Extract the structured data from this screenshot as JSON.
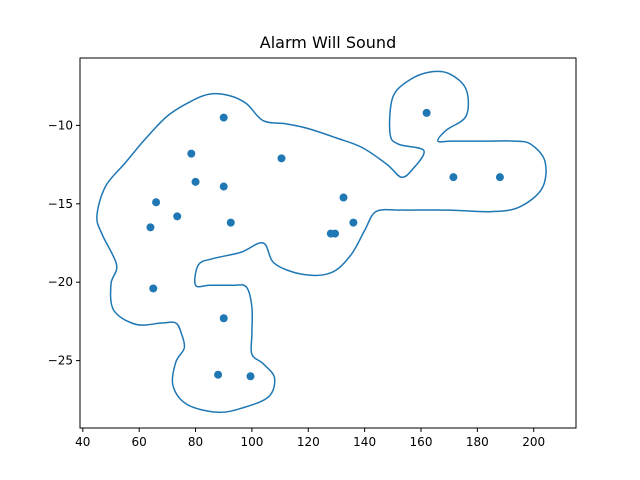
{
  "chart_data": {
    "type": "scatter",
    "title": "Alarm Will Sound",
    "xlabel": "",
    "ylabel": "",
    "xlim": [
      39,
      215
    ],
    "ylim": [
      -29.3,
      -5.7
    ],
    "xticks": [
      40,
      60,
      80,
      100,
      120,
      140,
      160,
      180,
      200
    ],
    "yticks": [
      -25,
      -20,
      -15,
      -10
    ],
    "grid": false,
    "colors": {
      "series": "#1f77b4"
    },
    "points": [
      {
        "x": 90,
        "y": -9.5
      },
      {
        "x": 78.5,
        "y": -11.8
      },
      {
        "x": 110.5,
        "y": -12.1
      },
      {
        "x": 80,
        "y": -13.6
      },
      {
        "x": 90,
        "y": -13.9
      },
      {
        "x": 66,
        "y": -14.9
      },
      {
        "x": 73.5,
        "y": -15.8
      },
      {
        "x": 92.5,
        "y": -16.2
      },
      {
        "x": 64,
        "y": -16.5
      },
      {
        "x": 65,
        "y": -20.4
      },
      {
        "x": 90,
        "y": -22.3
      },
      {
        "x": 88,
        "y": -25.9
      },
      {
        "x": 99.5,
        "y": -26
      },
      {
        "x": 128,
        "y": -16.9
      },
      {
        "x": 129.5,
        "y": -16.9
      },
      {
        "x": 132.5,
        "y": -14.6
      },
      {
        "x": 136,
        "y": -16.2
      },
      {
        "x": 162,
        "y": -9.2
      },
      {
        "x": 171.5,
        "y": -13.3
      },
      {
        "x": 188,
        "y": -13.3
      }
    ],
    "boundary": [
      [
        47,
        -17.0
      ],
      [
        45,
        -15.8
      ],
      [
        48,
        -13.9
      ],
      [
        55,
        -12.4
      ],
      [
        62,
        -10.9
      ],
      [
        70,
        -9.4
      ],
      [
        78,
        -8.5
      ],
      [
        85,
        -8.0
      ],
      [
        92,
        -8.1
      ],
      [
        98,
        -8.6
      ],
      [
        104,
        -9.7
      ],
      [
        112,
        -9.9
      ],
      [
        120,
        -10.2
      ],
      [
        130,
        -10.8
      ],
      [
        139,
        -11.4
      ],
      [
        148,
        -12.5
      ],
      [
        153,
        -13.3
      ],
      [
        157,
        -12.8
      ],
      [
        161,
        -11.6
      ],
      [
        152,
        -11.2
      ],
      [
        149,
        -10.5
      ],
      [
        150,
        -8.2
      ],
      [
        156,
        -7.1
      ],
      [
        163,
        -6.6
      ],
      [
        170,
        -6.7
      ],
      [
        176,
        -7.7
      ],
      [
        176,
        -9.4
      ],
      [
        169,
        -10.3
      ],
      [
        166,
        -11.0
      ],
      [
        171,
        -11.0
      ],
      [
        183,
        -11.0
      ],
      [
        193,
        -11.0
      ],
      [
        199,
        -11.2
      ],
      [
        204,
        -12.3
      ],
      [
        203,
        -14.0
      ],
      [
        195,
        -15.2
      ],
      [
        185,
        -15.5
      ],
      [
        170,
        -15.4
      ],
      [
        156,
        -15.4
      ],
      [
        152,
        -15.4
      ],
      [
        144,
        -15.5
      ],
      [
        140,
        -16.7
      ],
      [
        135,
        -18.3
      ],
      [
        128,
        -19.4
      ],
      [
        118,
        -19.5
      ],
      [
        108,
        -18.8
      ],
      [
        104,
        -17.5
      ],
      [
        96,
        -18.1
      ],
      [
        86,
        -18.5
      ],
      [
        81,
        -18.9
      ],
      [
        80,
        -20.2
      ],
      [
        85,
        -20.2
      ],
      [
        93,
        -20.2
      ],
      [
        98,
        -20.3
      ],
      [
        100,
        -21.6
      ],
      [
        100,
        -23.3
      ],
      [
        100,
        -24.6
      ],
      [
        104,
        -25.2
      ],
      [
        108,
        -26.1
      ],
      [
        106,
        -27.3
      ],
      [
        97,
        -28.0
      ],
      [
        88,
        -28.3
      ],
      [
        77,
        -27.8
      ],
      [
        72,
        -26.6
      ],
      [
        73,
        -25.1
      ],
      [
        76,
        -24.2
      ],
      [
        75,
        -23.3
      ],
      [
        73,
        -22.6
      ],
      [
        68,
        -22.6
      ],
      [
        59,
        -22.7
      ],
      [
        51,
        -21.8
      ],
      [
        50,
        -20.1
      ],
      [
        52,
        -18.9
      ]
    ]
  }
}
